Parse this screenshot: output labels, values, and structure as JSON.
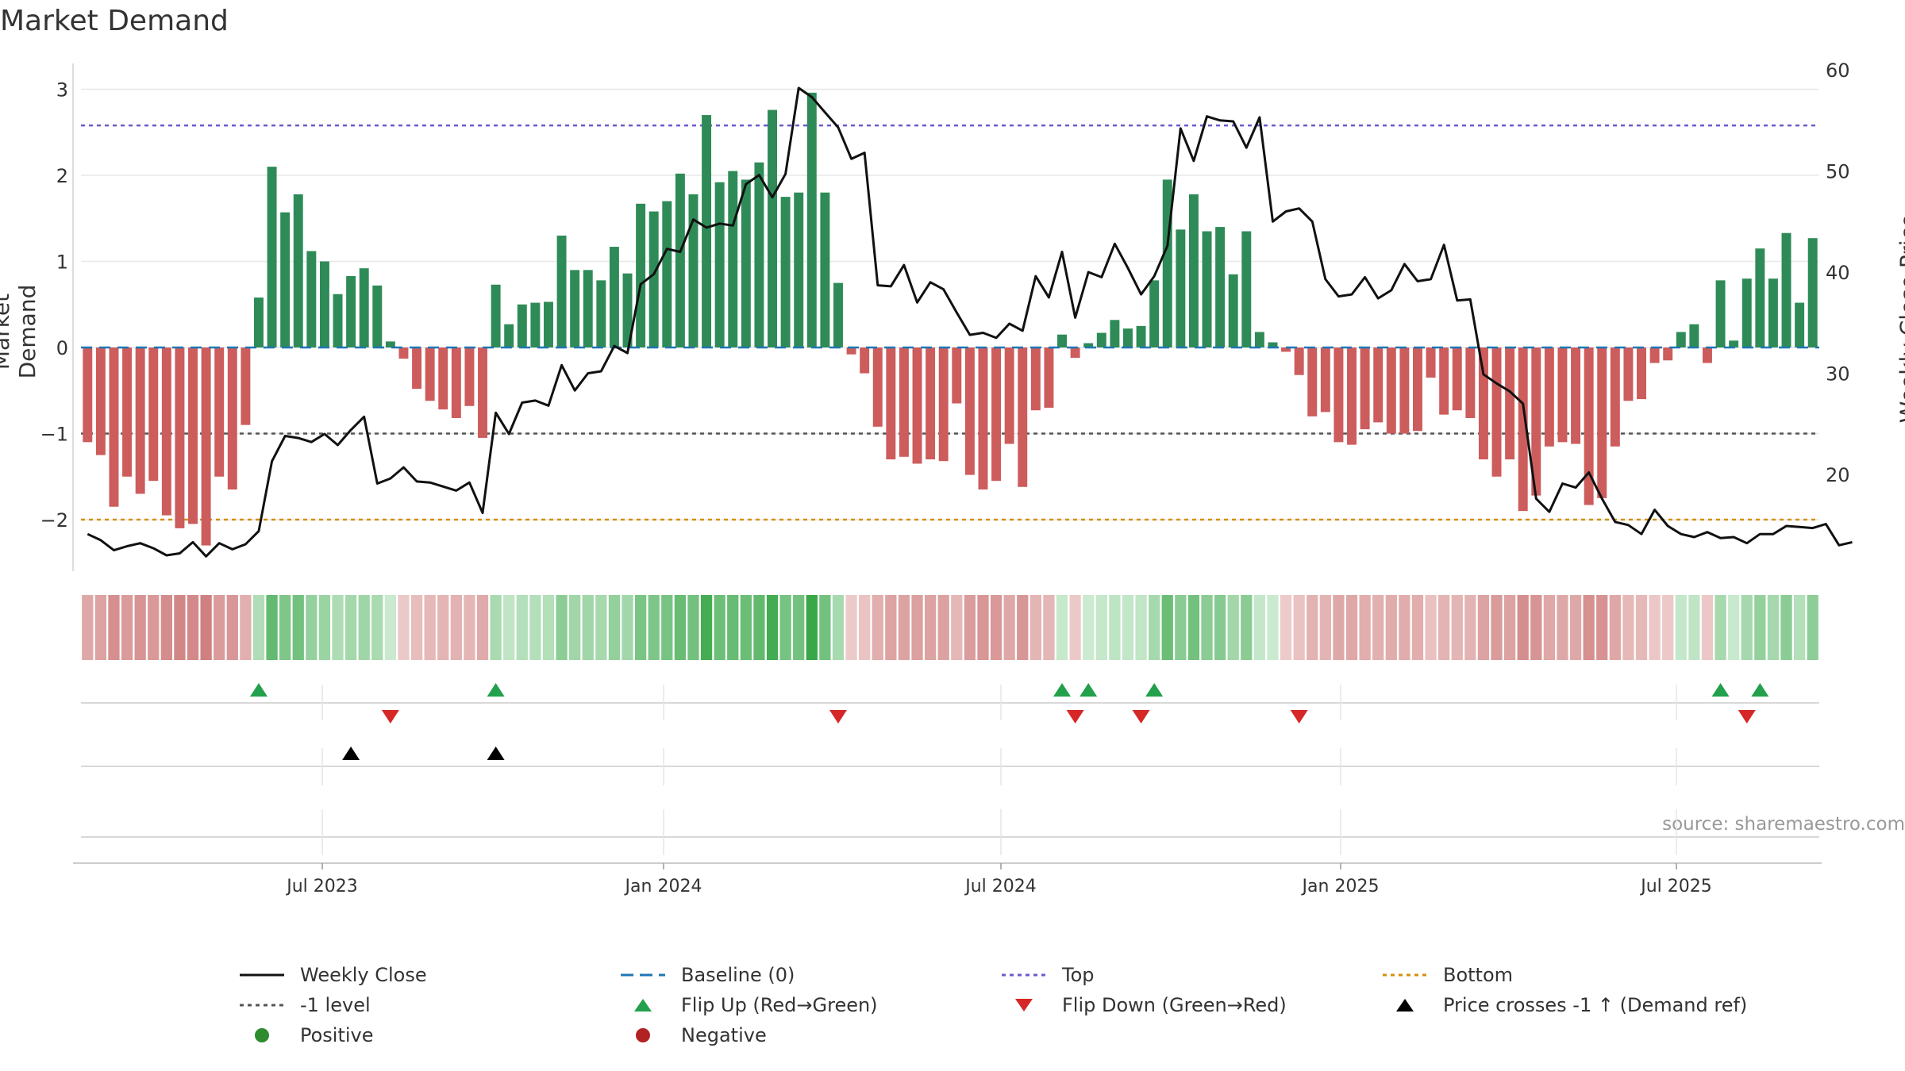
{
  "chart_data": {
    "type": "bar+line",
    "title": "Market Demand",
    "ylabel_left": "Market Demand",
    "ylabel_right": "Weekly Close Price",
    "ylim_left": [
      -2.6,
      3.2
    ],
    "ylim_right": [
      10,
      60
    ],
    "yticks_left": [
      "3",
      "2",
      "1",
      "0",
      "−1",
      "−2"
    ],
    "yticks_right": [
      "60",
      "50",
      "40",
      "30",
      "20"
    ],
    "x_ticks": [
      "Jul 2023",
      "Jan 2024",
      "Jul 2024",
      "Jan 2025",
      "Jul 2025"
    ],
    "reference_lines": {
      "top": 2.58,
      "bottom": -2.0,
      "minus_one": -1.0,
      "baseline": 0.0
    },
    "demand": [
      -1.1,
      -1.25,
      -1.85,
      -1.5,
      -1.7,
      -1.55,
      -1.95,
      -2.1,
      -2.05,
      -2.3,
      -1.5,
      -1.65,
      -0.9,
      0.58,
      2.1,
      1.57,
      1.78,
      1.12,
      1.0,
      0.62,
      0.83,
      0.92,
      0.72,
      0.07,
      -0.13,
      -0.48,
      -0.62,
      -0.72,
      -0.82,
      -0.68,
      -1.05,
      0.73,
      0.27,
      0.5,
      0.52,
      0.53,
      1.3,
      0.9,
      0.9,
      0.78,
      1.17,
      0.86,
      1.67,
      1.58,
      1.7,
      2.02,
      1.78,
      2.7,
      1.92,
      2.05,
      1.95,
      2.15,
      2.76,
      1.75,
      1.8,
      2.96,
      1.8,
      0.75,
      -0.08,
      -0.3,
      -0.92,
      -1.3,
      -1.27,
      -1.35,
      -1.3,
      -1.32,
      -0.65,
      -1.48,
      -1.65,
      -1.55,
      -1.12,
      -1.62,
      -0.73,
      -0.7,
      0.15,
      -0.12,
      0.05,
      0.17,
      0.32,
      0.22,
      0.25,
      0.78,
      1.95,
      1.37,
      1.78,
      1.35,
      1.4,
      0.85,
      1.35,
      0.18,
      0.06,
      -0.05,
      -0.32,
      -0.8,
      -0.75,
      -1.1,
      -1.13,
      -0.95,
      -0.87,
      -1.0,
      -1.0,
      -0.97,
      -0.35,
      -0.78,
      -0.73,
      -0.82,
      -1.3,
      -1.5,
      -1.3,
      -1.9,
      -1.72,
      -1.15,
      -1.1,
      -1.12,
      -1.83,
      -1.75,
      -1.15,
      -0.62,
      -0.6,
      -0.18,
      -0.15,
      0.18,
      0.27,
      -0.18,
      0.78,
      0.08,
      0.8,
      1.15,
      0.8,
      1.33,
      0.52,
      1.27
    ],
    "weekly_close": [
      14.1,
      13.5,
      12.5,
      12.9,
      13.2,
      12.7,
      12.0,
      12.2,
      13.3,
      11.9,
      13.2,
      12.6,
      13.1,
      14.4,
      21.3,
      23.8,
      23.6,
      23.2,
      24.0,
      22.9,
      24.4,
      25.7,
      19.1,
      19.6,
      20.7,
      19.3,
      19.2,
      18.8,
      18.4,
      19.2,
      16.2,
      26.1,
      24.0,
      27.1,
      27.3,
      26.8,
      30.8,
      28.3,
      30.0,
      30.2,
      32.7,
      32.0,
      38.8,
      39.8,
      42.3,
      42.0,
      45.2,
      44.4,
      44.8,
      44.6,
      48.7,
      49.6,
      47.4,
      49.7,
      58.2,
      57.3,
      55.8,
      54.3,
      51.2,
      51.8,
      38.7,
      38.6,
      40.7,
      37.0,
      39.0,
      38.3,
      36.0,
      33.8,
      34.0,
      33.5,
      34.9,
      34.2,
      39.6,
      37.5,
      42.0,
      35.5,
      40.0,
      39.5,
      42.8,
      40.4,
      37.8,
      39.6,
      42.6,
      54.2,
      51.0,
      55.4,
      55.0,
      54.9,
      52.3,
      55.3,
      45.0,
      46.0,
      46.3,
      45.0,
      39.3,
      37.6,
      37.8,
      39.5,
      37.4,
      38.2,
      40.8,
      39.1,
      39.3,
      42.7,
      37.2,
      37.3,
      29.9,
      29.0,
      28.2,
      27.0,
      17.6,
      16.3,
      19.1,
      18.7,
      20.2,
      17.6,
      15.3,
      15.0,
      14.1,
      16.5,
      14.9,
      14.1,
      13.8,
      14.3,
      13.7,
      13.8,
      13.2,
      14.1,
      14.1,
      14.9,
      14.8,
      14.7,
      15.1,
      13.0,
      13.3
    ],
    "strength_strip": "per-week colour intensity mirroring the demand sign and magnitude",
    "flip_up_weeks": [
      13,
      31,
      74,
      76,
      81,
      124,
      127
    ],
    "flip_down_weeks": [
      23,
      57,
      75,
      80,
      92,
      126
    ],
    "price_cross_weeks": [
      20,
      31
    ],
    "legend": [
      "Weekly Close",
      "Baseline (0)",
      "Top",
      "Bottom",
      "-1 level",
      "Flip Up (Red→Green)",
      "Flip Down (Green→Red)",
      "Price crosses -1 ↑ (Demand ref)",
      "Positive",
      "Negative"
    ]
  },
  "labels": {
    "title": "Market Demand",
    "ylabel_left": "Market Demand",
    "ylabel_right": "Weekly Close Price",
    "source": "source: sharemaestro.com"
  },
  "legend": {
    "weekly_close": "Weekly Close",
    "baseline": "Baseline (0)",
    "top": "Top",
    "bottom": "Bottom",
    "minus_one": "-1 level",
    "flip_up": "Flip Up (Red→Green)",
    "flip_down": "Flip Down (Green→Red)",
    "price_cross": "Price crosses -1 ↑ (Demand ref)",
    "positive": "Positive",
    "negative": "Negative"
  },
  "colors": {
    "positive_bar": "#2e8b57",
    "negative_bar": "#cd5c5c",
    "line": "#111111",
    "baseline": "#1f77b4",
    "top": "#6a5acd",
    "bottom": "#d4900a",
    "minus_one": "#555555",
    "flip_up": "#22a04b",
    "flip_down": "#d62728",
    "price_cross": "#000000",
    "grid": "#e8e8e8"
  }
}
